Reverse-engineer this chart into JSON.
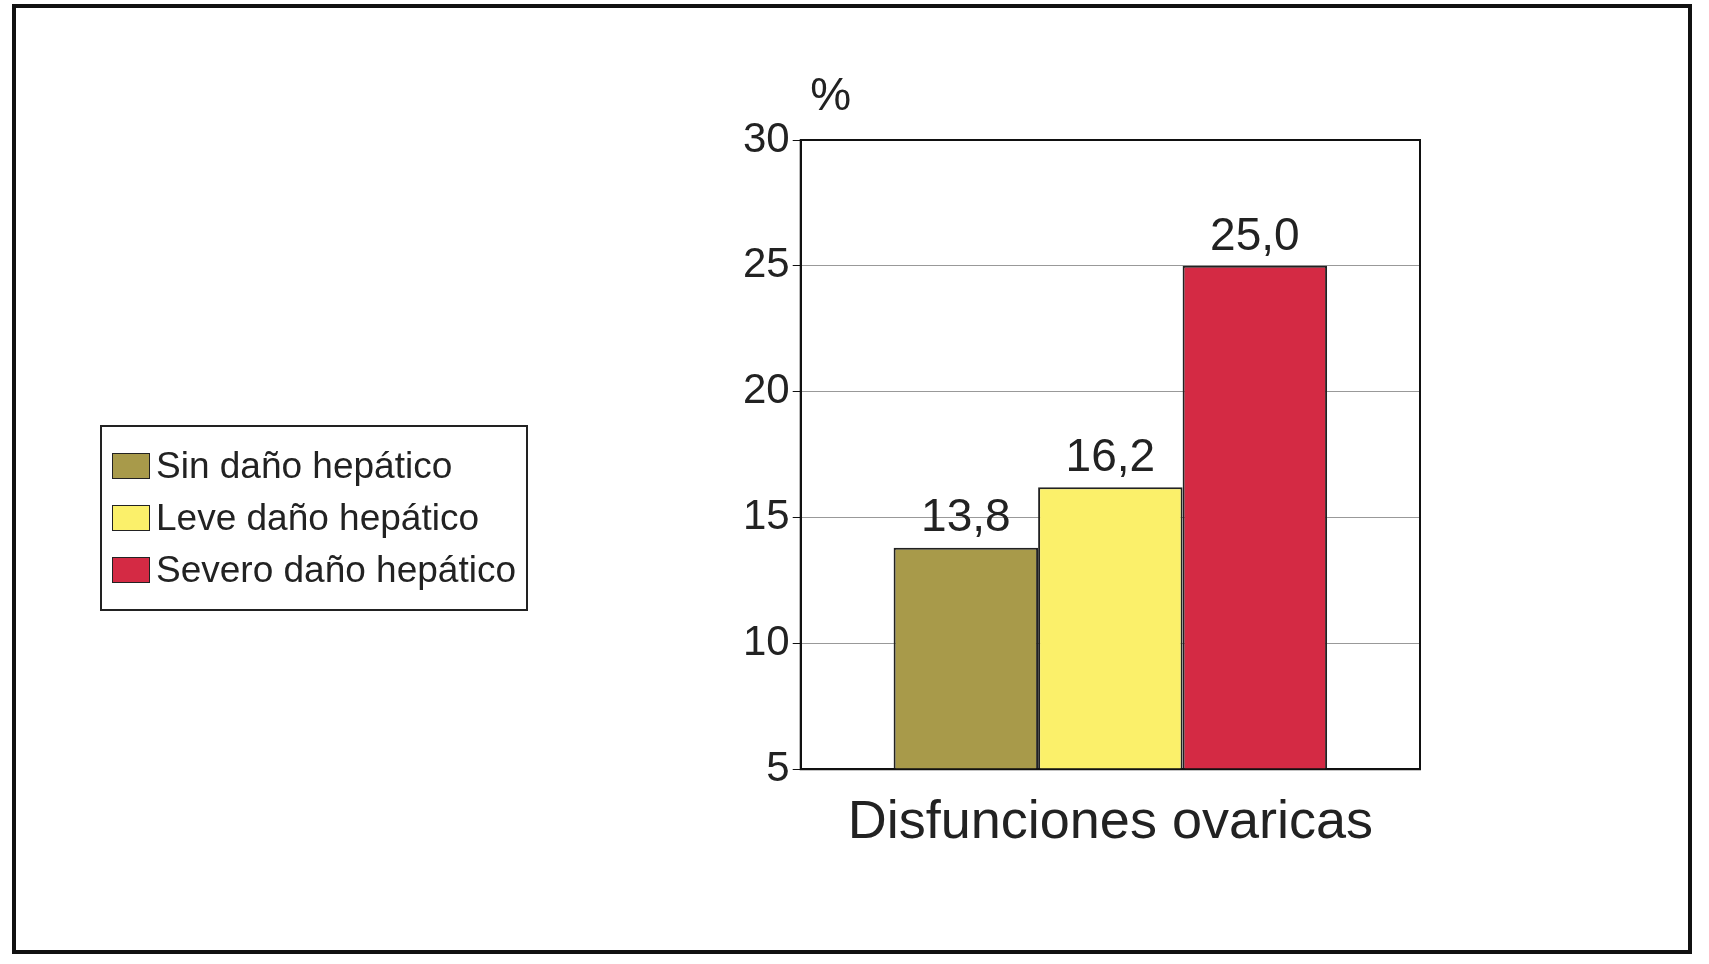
{
  "chart_data": {
    "type": "bar",
    "ylabel": "%",
    "categories": [
      "Disfunciones ovaricas"
    ],
    "series": [
      {
        "name": "Sin daño hepático",
        "color": "#a89a4a",
        "values": [
          13.8
        ],
        "value_labels": [
          "13,8"
        ]
      },
      {
        "name": "Leve daño hepático",
        "color": "#fbf06a",
        "values": [
          16.2
        ],
        "value_labels": [
          "16,2"
        ]
      },
      {
        "name": "Severo daño hepático",
        "color": "#d42a44",
        "values": [
          25.0
        ],
        "value_labels": [
          "25,0"
        ]
      }
    ],
    "ylim": [
      5,
      30
    ],
    "yticks": [
      5,
      10,
      15,
      20,
      25,
      30
    ],
    "grid": "y",
    "legend": "left"
  }
}
